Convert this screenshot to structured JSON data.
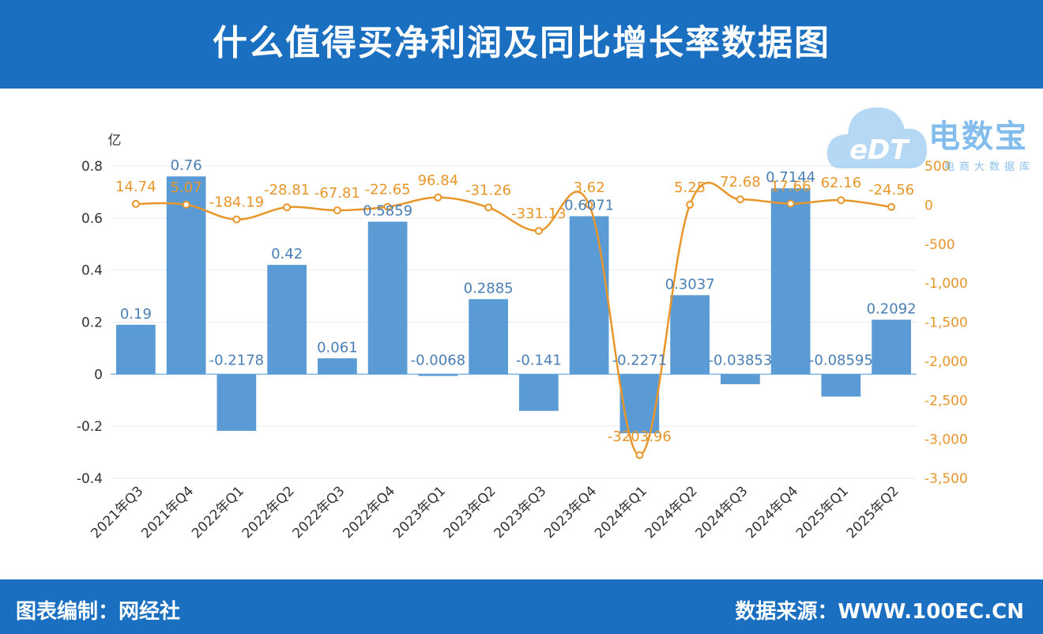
{
  "header": {
    "title": "什么值得买净利润及同比增长率数据图"
  },
  "footer": {
    "left": "图表编制：网经社",
    "right": "数据来源：WWW.100EC.CN"
  },
  "watermark": {
    "brand": "电数宝",
    "logo": "eDT",
    "sub": "电商大数据库"
  },
  "colors": {
    "bar": "#5b9bd5",
    "line": "#e8962a",
    "header": "#1a6fc0",
    "axis_left": "#333333",
    "axis_right": "#e8962a"
  },
  "chart_data": {
    "type": "bar",
    "categories": [
      "2021年Q3",
      "2021年Q4",
      "2022年Q1",
      "2022年Q2",
      "2022年Q3",
      "2022年Q4",
      "2023年Q1",
      "2023年Q2",
      "2023年Q3",
      "2023年Q4",
      "2024年Q1",
      "2024年Q2",
      "2024年Q3",
      "2024年Q4",
      "2025年Q1",
      "2025年Q2"
    ],
    "y_unit": "亿",
    "ylim": [
      -0.4,
      0.8
    ],
    "y_ticks": [
      0.8,
      0.6,
      0.4,
      0.2,
      0,
      -0.2,
      -0.4
    ],
    "y2lim": [
      -3500,
      500
    ],
    "y2_ticks": [
      500,
      0,
      -500,
      -1000,
      -1500,
      -2000,
      -2500,
      -3000,
      -3500
    ],
    "y2_tick_labels": [
      "500",
      "0",
      "-500",
      "-1,000",
      "-1,500",
      "-2,000",
      "-2,500",
      "-3,000",
      "-3,500"
    ],
    "series": [
      {
        "kind": "bar",
        "axis": "left",
        "values": [
          0.19,
          0.76,
          -0.2178,
          0.42,
          0.061,
          0.5859,
          -0.0068,
          0.2885,
          -0.141,
          0.6071,
          -0.2271,
          0.3037,
          -0.03853,
          0.7144,
          -0.08595,
          0.2092
        ],
        "labels": [
          "0.19",
          "0.76",
          "-0.2178",
          "0.42",
          "0.061",
          "0.5859",
          "-0.0068",
          "0.2885",
          "-0.141",
          "0.6071",
          "-0.2271",
          "0.3037",
          "-0.03853",
          "0.7144",
          "-0.08595",
          "0.2092"
        ]
      },
      {
        "kind": "line",
        "axis": "right",
        "values": [
          14.74,
          5.07,
          -184.19,
          -28.81,
          -67.81,
          -22.65,
          96.84,
          -31.26,
          -331.13,
          3.62,
          -3203.96,
          5.25,
          72.68,
          17.66,
          62.16,
          -24.56
        ],
        "labels": [
          "14.74",
          "5.07",
          "-184.19",
          "-28.81",
          "-67.81",
          "-22.65",
          "96.84",
          "-31.26",
          "-331.13",
          "3.62",
          "-3203.96",
          "5.25",
          "72.68",
          "17.66",
          "62.16",
          "-24.56"
        ]
      }
    ]
  }
}
